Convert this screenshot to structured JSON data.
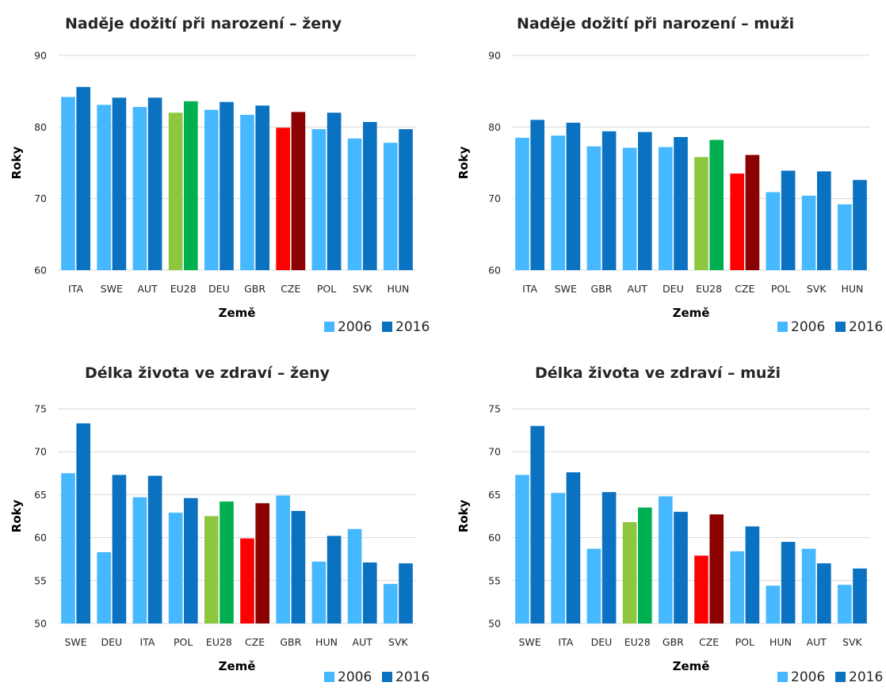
{
  "colors": {
    "c2006": "#45b8ff",
    "c2016": "#0a72c0",
    "eu2006": "#8dc63f",
    "eu2016": "#00b050",
    "cze2006": "#ff0000",
    "cze2016": "#8b0000"
  },
  "chart_data": [
    {
      "type": "bar",
      "title": "Naděje dožití při narození – ženy",
      "xlabel": "Země",
      "ylabel": "Roky",
      "ylim": [
        60,
        90
      ],
      "yticks": [
        "60",
        "70",
        "80",
        "90"
      ],
      "grid": true,
      "legend_position": "bottom-right",
      "categories": [
        "ITA",
        "SWE",
        "AUT",
        "EU28",
        "DEU",
        "GBR",
        "CZE",
        "POL",
        "SVK",
        "HUN"
      ],
      "series": [
        {
          "name": "2006",
          "values": [
            84.2,
            83.1,
            82.8,
            82.0,
            82.4,
            81.7,
            79.9,
            79.7,
            78.4,
            77.8
          ]
        },
        {
          "name": "2016",
          "values": [
            85.6,
            84.1,
            84.1,
            83.6,
            83.5,
            83.0,
            82.1,
            82.0,
            80.7,
            79.7
          ]
        }
      ]
    },
    {
      "type": "bar",
      "title": "Naděje dožití při narození – muži",
      "xlabel": "Země",
      "ylabel": "Roky",
      "ylim": [
        60,
        90
      ],
      "yticks": [
        "60",
        "70",
        "80",
        "90"
      ],
      "grid": true,
      "legend_position": "bottom-right",
      "categories": [
        "ITA",
        "SWE",
        "GBR",
        "AUT",
        "DEU",
        "EU28",
        "CZE",
        "POL",
        "SVK",
        "HUN"
      ],
      "series": [
        {
          "name": "2006",
          "values": [
            78.5,
            78.8,
            77.3,
            77.1,
            77.2,
            75.8,
            73.5,
            70.9,
            70.4,
            69.2
          ]
        },
        {
          "name": "2016",
          "values": [
            81.0,
            80.6,
            79.4,
            79.3,
            78.6,
            78.2,
            76.1,
            73.9,
            73.8,
            72.6
          ]
        }
      ]
    },
    {
      "type": "bar",
      "title": "Délka života ve zdraví – ženy",
      "xlabel": "Země",
      "ylabel": "Roky",
      "ylim": [
        50,
        75
      ],
      "yticks": [
        "50",
        "55",
        "60",
        "65",
        "70",
        "75"
      ],
      "grid": true,
      "legend_position": "bottom-right",
      "categories": [
        "SWE",
        "DEU",
        "ITA",
        "POL",
        "EU28",
        "CZE",
        "GBR",
        "HUN",
        "AUT",
        "SVK"
      ],
      "series": [
        {
          "name": "2006",
          "values": [
            67.5,
            58.3,
            64.7,
            62.9,
            62.5,
            59.9,
            64.9,
            57.2,
            61.0,
            54.6
          ]
        },
        {
          "name": "2016",
          "values": [
            73.3,
            67.3,
            67.2,
            64.6,
            64.2,
            64.0,
            63.1,
            60.2,
            57.1,
            57.0
          ]
        }
      ]
    },
    {
      "type": "bar",
      "title": "Délka života ve zdraví – muži",
      "xlabel": "Země",
      "ylabel": "Roky",
      "ylim": [
        50,
        75
      ],
      "yticks": [
        "50",
        "55",
        "60",
        "65",
        "70",
        "75"
      ],
      "grid": true,
      "legend_position": "bottom-right",
      "categories": [
        "SWE",
        "ITA",
        "DEU",
        "EU28",
        "GBR",
        "CZE",
        "POL",
        "HUN",
        "AUT",
        "SVK"
      ],
      "series": [
        {
          "name": "2006",
          "values": [
            67.3,
            65.2,
            58.7,
            61.8,
            64.8,
            57.9,
            58.4,
            54.4,
            58.7,
            54.5
          ]
        },
        {
          "name": "2016",
          "values": [
            73.0,
            67.6,
            65.3,
            63.5,
            63.0,
            62.7,
            61.3,
            59.5,
            57.0,
            56.4
          ]
        }
      ]
    }
  ]
}
